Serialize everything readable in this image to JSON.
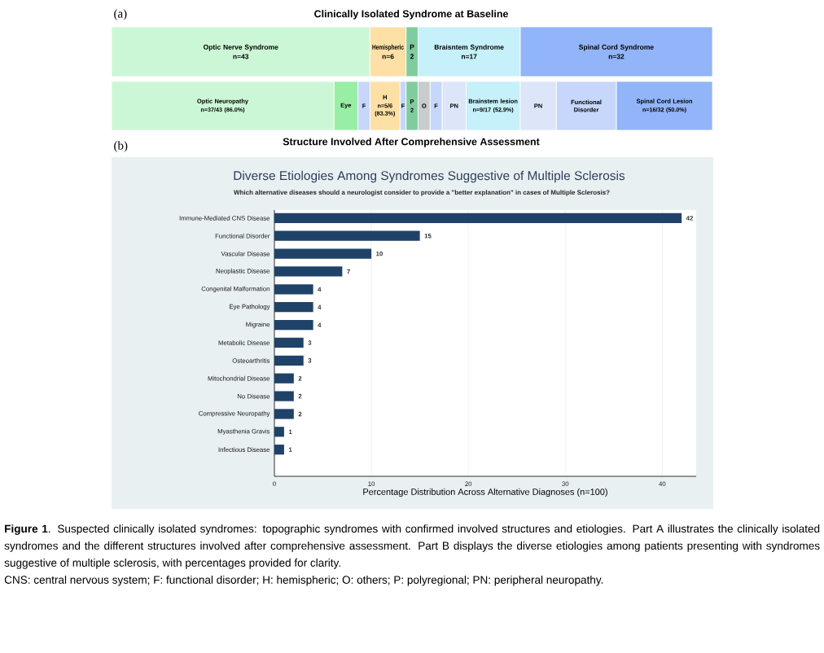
{
  "chart_data": [
    {
      "type": "bar",
      "orientation": "horizontal",
      "stacked": true,
      "title": "Clinically Isolated Syndrome at Baseline",
      "annotations": [
        "(a)"
      ],
      "categories": [
        null
      ],
      "series": [
        {
          "name": "Optic Nerve Syndrome",
          "color": "#ccf7d6",
          "values": [
            43
          ],
          "value_labels": [
            "n=43"
          ]
        },
        {
          "name": "Hemispheric",
          "color": "#fde0a6",
          "values": [
            6
          ],
          "value_labels": [
            "n=6"
          ]
        },
        {
          "name": "P",
          "color": "#80cc9e",
          "values": [
            2
          ],
          "value_labels": [
            "2"
          ]
        },
        {
          "name": "Braisntem Syndrome",
          "color": "#c6f0fa",
          "values": [
            17
          ],
          "value_labels": [
            "n=17"
          ]
        },
        {
          "name": "Spinal Cord Syndrome",
          "color": "#92b4f8",
          "values": [
            32
          ],
          "value_labels": [
            "n=32"
          ]
        }
      ]
    },
    {
      "type": "bar",
      "orientation": "horizontal",
      "stacked": true,
      "title": "Structure Involved After Comprehensive Assessment",
      "annotations": [
        "(b)"
      ],
      "categories": [
        null
      ],
      "series": [
        {
          "name": "Optic Neuropathy",
          "color": "#ccf7d6",
          "values": [
            37
          ],
          "value_labels": [
            "n=37/43 (86.0%)"
          ]
        },
        {
          "name": "Eye",
          "color": "#99eea6",
          "values": [
            4
          ]
        },
        {
          "name": "F",
          "color": "#c6d7fb",
          "values": [
            2
          ]
        },
        {
          "name": "H",
          "color": "#fde0a6",
          "values": [
            5
          ],
          "value_labels": [
            "n=5/6 (83.3%)"
          ]
        },
        {
          "name": "F",
          "color": "#c6d7fb",
          "values": [
            1
          ]
        },
        {
          "name": "P",
          "color": "#80cc9e",
          "values": [
            2
          ],
          "value_labels": [
            "2"
          ]
        },
        {
          "name": "O",
          "color": "#c8cccc",
          "values": [
            2
          ]
        },
        {
          "name": "F",
          "color": "#c6d7fb",
          "values": [
            2
          ]
        },
        {
          "name": "PN",
          "color": "#dde5f8",
          "values": [
            4
          ]
        },
        {
          "name": "Brainstem lesion",
          "color": "#c6f0fa",
          "values": [
            9
          ],
          "value_labels": [
            "n=9/17 (52.9%)"
          ]
        },
        {
          "name": "PN",
          "color": "#dde5f8",
          "values": [
            6
          ]
        },
        {
          "name": "Functional Disorder",
          "color": "#c6d7fb",
          "values": [
            10
          ]
        },
        {
          "name": "Spinal Cord Lesion",
          "color": "#92b4f8",
          "values": [
            16
          ],
          "value_labels": [
            "n=16/32 (50.0%)"
          ]
        }
      ]
    },
    {
      "type": "bar",
      "orientation": "horizontal",
      "title": "Diverse Etiologies Among Syndromes Suggestive of Multiple Sclerosis",
      "subtitle": "Which alternative diseases should a neurologist consider to provide a \"better explanation\" in cases of Multiple Sclerosis?",
      "xlabel": "Percentage Distribution Across Alternative Diagnoses (n=100)",
      "categories": [
        "Immune-Mediated CNS Disease",
        "Functional Disorder",
        "Vascular Disease",
        "Neoplastic Disease",
        "Congenital Malformation",
        "Eye Pathology",
        "Migraine",
        "Metabolic Disease",
        "Osteoarthritis",
        "Mitochondrial Disease",
        "No Disease",
        "Compressive Neuropathy",
        "Myasthenia Gravis",
        "Infectious Disease"
      ],
      "values": [
        42,
        15,
        10,
        7,
        4,
        4,
        4,
        3,
        3,
        2,
        2,
        2,
        1,
        1
      ],
      "color": "#1f4268",
      "data_labels": true,
      "xlim": [
        0,
        43.5
      ],
      "xticks": [
        0,
        10,
        20,
        30,
        40
      ],
      "grid": "x",
      "annotations": [
        "**Figure 1**. Suspected clinically isolated syndromes: topographic syndromes with confirmed involved structures and etiologies. Part A illustrates the clinically isolated syndromes and the different structures involved after comprehensive assessment. Part B displays the diverse etiologies among patients presenting with syndromes suggestive of multiple sclerosis, with percentages provided for clarity.",
        "CNS: central nervous system; F: functional disorder; H: hemispheric; O: others; P: polyregional; PN: peripheral neuropathy."
      ]
    }
  ]
}
